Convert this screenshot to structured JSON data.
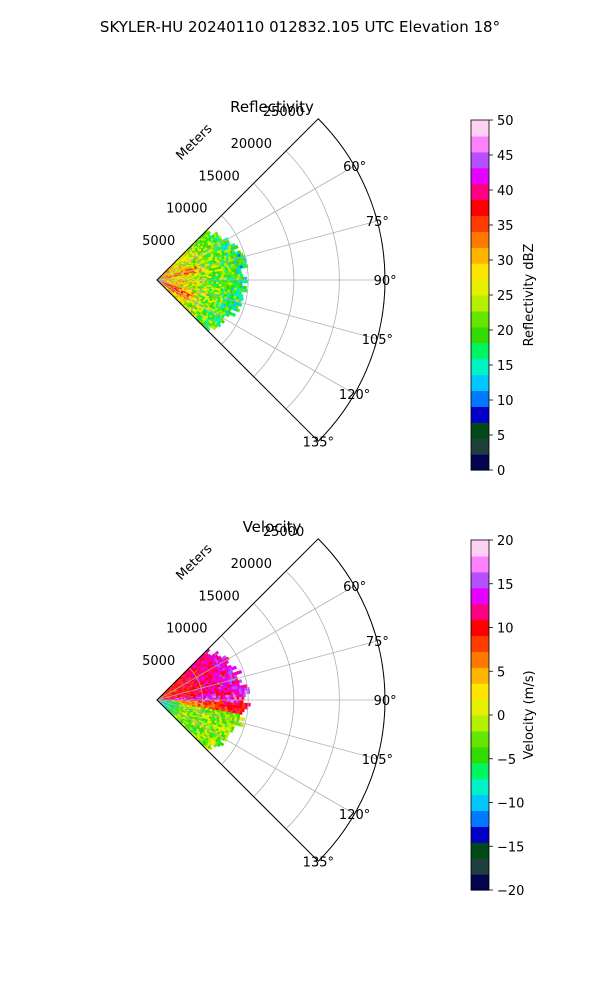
{
  "suptitle": "SKYLER-HU  20240110  012832.105 UTC Elevation 18°",
  "chart_data": [
    {
      "type": "heatmap",
      "projection": "polar-sector",
      "title": "Reflectivity",
      "radial_label": "Meters",
      "radial_ticks": [
        "5000",
        "10000",
        "15000",
        "20000",
        "25000"
      ],
      "radial_tick_values": [
        5000,
        10000,
        15000,
        20000,
        25000
      ],
      "angle_ticks": [
        "60°",
        "75°",
        "90°",
        "105°",
        "120°",
        "135°"
      ],
      "angle_tick_values": [
        60,
        75,
        90,
        105,
        120,
        135
      ],
      "angle_range": [
        45,
        135
      ],
      "radial_range": [
        0,
        25000
      ],
      "grid": true,
      "data_extent_m": 10000,
      "colorbar": {
        "label": "Reflectivity dBZ",
        "range": [
          0,
          50
        ],
        "ticks": [
          "0",
          "5",
          "10",
          "15",
          "20",
          "25",
          "30",
          "35",
          "40",
          "45",
          "50"
        ],
        "colors": [
          "#04044f",
          "#1f3f3f",
          "#004a1a",
          "#0000c8",
          "#0078ff",
          "#00c8ff",
          "#00f0c8",
          "#00f564",
          "#32dc00",
          "#64e600",
          "#b4f000",
          "#e6f000",
          "#ffe600",
          "#ffb400",
          "#ff7800",
          "#ff3c00",
          "#ff0000",
          "#ff0080",
          "#e600ff",
          "#b450ff",
          "#ff80ff",
          "#ffd0f5"
        ]
      }
    },
    {
      "type": "heatmap",
      "projection": "polar-sector",
      "title": "Velocity",
      "radial_label": "Meters",
      "radial_ticks": [
        "5000",
        "10000",
        "15000",
        "20000",
        "25000"
      ],
      "radial_tick_values": [
        5000,
        10000,
        15000,
        20000,
        25000
      ],
      "angle_ticks": [
        "60°",
        "75°",
        "90°",
        "105°",
        "120°",
        "135°"
      ],
      "angle_tick_values": [
        60,
        75,
        90,
        105,
        120,
        135
      ],
      "angle_range": [
        45,
        135
      ],
      "radial_range": [
        0,
        25000
      ],
      "grid": true,
      "data_extent_m": 10000,
      "colorbar": {
        "label": "Velocity (m/s)",
        "range": [
          -20,
          20
        ],
        "ticks": [
          "−20",
          "−15",
          "−10",
          "−5",
          "0",
          "5",
          "10",
          "15",
          "20"
        ],
        "colors": [
          "#04044f",
          "#1f3f3f",
          "#004a1a",
          "#0000c8",
          "#0078ff",
          "#00c8ff",
          "#00f0c8",
          "#00f564",
          "#32dc00",
          "#64e600",
          "#b4f000",
          "#e6f000",
          "#ffe600",
          "#ffb400",
          "#ff7800",
          "#ff3c00",
          "#ff0000",
          "#ff0080",
          "#e600ff",
          "#b450ff",
          "#ff80ff",
          "#ffd0f5"
        ]
      }
    }
  ]
}
